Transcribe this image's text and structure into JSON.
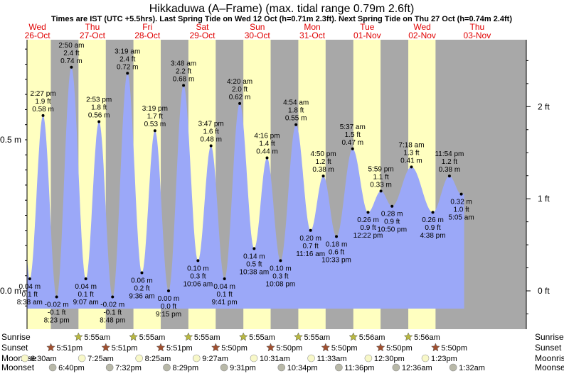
{
  "chart_data": {
    "type": "area",
    "title": "Hikkaduwa (A–Frame) (max. tidal range 0.79m 2.6ft)",
    "subtitle": "Times are IST (UTC +5.5hrs). Last Spring Tide on Wed 12 Oct (h=0.71m 2.3ft). Next Spring Tide on Thu 27 Oct (h=0.74m 2.4ft)",
    "days": [
      {
        "dow": "Wed",
        "date": "26-Oct"
      },
      {
        "dow": "Thu",
        "date": "27-Oct"
      },
      {
        "dow": "Fri",
        "date": "28-Oct"
      },
      {
        "dow": "Sat",
        "date": "29-Oct"
      },
      {
        "dow": "Sun",
        "date": "30-Oct"
      },
      {
        "dow": "Mon",
        "date": "31-Oct"
      },
      {
        "dow": "Tue",
        "date": "01-Nov"
      },
      {
        "dow": "Wed",
        "date": "02-Nov"
      },
      {
        "dow": "Thu",
        "date": "03-Nov"
      }
    ],
    "y_left_ticks": [
      {
        "value": 0,
        "label": "0.0 m"
      },
      {
        "value": 0.5,
        "label": "0.5 m"
      }
    ],
    "y_right_ticks": [
      {
        "value": 0,
        "label": "0 ft"
      },
      {
        "value": 1,
        "label": "1 ft"
      },
      {
        "value": 2,
        "label": "2 ft"
      }
    ],
    "ylim": [
      -0.085,
      0.93
    ],
    "series": [
      {
        "values": [
          {
            "t": "2022-10-26T08:38",
            "h": 0.04,
            "type": "low",
            "lines": [
              "0.04 m",
              "0.1 ft",
              "8:38 am"
            ]
          },
          {
            "t": "2022-10-26T14:27",
            "h": 0.58,
            "type": "high",
            "lines": [
              "2:27 pm",
              "1.9 ft",
              "0.58 m"
            ]
          },
          {
            "t": "2022-10-26T20:23",
            "h": -0.02,
            "type": "low",
            "lines": [
              "-0.02 m",
              "-0.1 ft",
              "8:23 pm"
            ]
          },
          {
            "t": "2022-10-27T02:50",
            "h": 0.74,
            "type": "high",
            "lines": [
              "2:50 am",
              "2.4 ft",
              "0.74 m"
            ]
          },
          {
            "t": "2022-10-27T09:07",
            "h": 0.04,
            "type": "low",
            "lines": [
              "0.04 m",
              "0.1 ft",
              "9:07 am"
            ]
          },
          {
            "t": "2022-10-27T14:53",
            "h": 0.56,
            "type": "high",
            "lines": [
              "2:53 pm",
              "1.8 ft",
              "0.56 m"
            ]
          },
          {
            "t": "2022-10-27T20:48",
            "h": -0.02,
            "type": "low",
            "lines": [
              "-0.02 m",
              "-0.1 ft",
              "8:48 pm"
            ]
          },
          {
            "t": "2022-10-28T03:19",
            "h": 0.72,
            "type": "high",
            "lines": [
              "3:19 am",
              "2.4 ft",
              "0.72 m"
            ]
          },
          {
            "t": "2022-10-28T09:36",
            "h": 0.06,
            "type": "low",
            "lines": [
              "0.06 m",
              "0.2 ft",
              "9:36 am"
            ]
          },
          {
            "t": "2022-10-28T15:19",
            "h": 0.53,
            "type": "high",
            "lines": [
              "3:19 pm",
              "1.7 ft",
              "0.53 m"
            ]
          },
          {
            "t": "2022-10-28T21:15",
            "h": 0.0,
            "type": "low",
            "lines": [
              "0.00 m",
              "0.0 ft",
              "9:15 pm"
            ]
          },
          {
            "t": "2022-10-29T03:48",
            "h": 0.68,
            "type": "high",
            "lines": [
              "3:48 am",
              "2.2 ft",
              "0.68 m"
            ]
          },
          {
            "t": "2022-10-29T10:06",
            "h": 0.1,
            "type": "low",
            "lines": [
              "0.10 m",
              "0.3 ft",
              "10:06 am"
            ]
          },
          {
            "t": "2022-10-29T15:47",
            "h": 0.48,
            "type": "high",
            "lines": [
              "3:47 pm",
              "1.6 ft",
              "0.48 m"
            ]
          },
          {
            "t": "2022-10-29T21:41",
            "h": 0.04,
            "type": "low",
            "lines": [
              "0.04 m",
              "0.1 ft",
              "9:41 pm"
            ]
          },
          {
            "t": "2022-10-30T04:20",
            "h": 0.62,
            "type": "high",
            "lines": [
              "4:20 am",
              "2.0 ft",
              "0.62 m"
            ]
          },
          {
            "t": "2022-10-30T10:38",
            "h": 0.14,
            "type": "low",
            "lines": [
              "0.14 m",
              "0.5 ft",
              "10:38 am"
            ]
          },
          {
            "t": "2022-10-30T16:16",
            "h": 0.44,
            "type": "high",
            "lines": [
              "4:16 pm",
              "1.4 ft",
              "0.44 m"
            ]
          },
          {
            "t": "2022-10-30T22:08",
            "h": 0.1,
            "type": "low",
            "lines": [
              "0.10 m",
              "0.3 ft",
              "10:08 pm"
            ]
          },
          {
            "t": "2022-10-31T04:54",
            "h": 0.55,
            "type": "high",
            "lines": [
              "4:54 am",
              "1.8 ft",
              "0.55 m"
            ]
          },
          {
            "t": "2022-10-31T11:16",
            "h": 0.2,
            "type": "low",
            "lines": [
              "0.20 m",
              "0.7 ft",
              "11:16 am"
            ]
          },
          {
            "t": "2022-10-31T16:50",
            "h": 0.38,
            "type": "high",
            "lines": [
              "4:50 pm",
              "1.2 ft",
              "0.38 m"
            ]
          },
          {
            "t": "2022-10-31T22:33",
            "h": 0.18,
            "type": "low",
            "lines": [
              "0.18 m",
              "0.6 ft",
              "10:33 pm"
            ]
          },
          {
            "t": "2022-11-01T05:37",
            "h": 0.47,
            "type": "high",
            "lines": [
              "5:37 am",
              "1.5 ft",
              "0.47 m"
            ]
          },
          {
            "t": "2022-11-01T12:22",
            "h": 0.26,
            "type": "low",
            "lines": [
              "0.26 m",
              "0.9 ft",
              "12:22 pm"
            ]
          },
          {
            "t": "2022-11-01T17:59",
            "h": 0.33,
            "type": "high",
            "lines": [
              "5:59 pm",
              "1.1 ft",
              "0.33 m"
            ]
          },
          {
            "t": "2022-11-01T22:50",
            "h": 0.28,
            "type": "low",
            "lines": [
              "0.28 m",
              "0.9 ft",
              "10:50 pm"
            ]
          },
          {
            "t": "2022-11-02T07:18",
            "h": 0.41,
            "type": "high",
            "lines": [
              "7:18 am",
              "1.3 ft",
              "0.41 m"
            ]
          },
          {
            "t": "2022-11-02T16:38",
            "h": 0.26,
            "type": "low",
            "lines": [
              "0.26 m",
              "0.9 ft",
              "4:38 pm"
            ]
          },
          {
            "t": "2022-11-02T23:54",
            "h": 0.38,
            "type": "high",
            "lines": [
              "11:54 pm",
              "1.2 ft",
              "0.38 m"
            ]
          },
          {
            "t": "2022-11-03T05:05",
            "h": 0.32,
            "type": "low",
            "lines": [
              "0.32 m",
              "1.0 ft",
              "5:05 am"
            ]
          }
        ]
      }
    ],
    "rows": {
      "labels": [
        "Sunrise",
        "Sunset",
        "Moonrise",
        "Moonset"
      ],
      "sunrise": [
        {
          "t": "2022-10-27T05:55",
          "text": "5:55am"
        },
        {
          "t": "2022-10-28T05:55",
          "text": "5:55am"
        },
        {
          "t": "2022-10-29T05:55",
          "text": "5:55am"
        },
        {
          "t": "2022-10-30T05:55",
          "text": "5:55am"
        },
        {
          "t": "2022-10-31T05:55",
          "text": "5:55am"
        },
        {
          "t": "2022-11-01T05:56",
          "text": "5:56am"
        },
        {
          "t": "2022-11-02T05:56",
          "text": "5:56am"
        }
      ],
      "sunset": [
        {
          "t": "2022-10-26T17:51",
          "text": "5:51pm"
        },
        {
          "t": "2022-10-27T17:51",
          "text": "5:51pm"
        },
        {
          "t": "2022-10-28T17:51",
          "text": "5:51pm"
        },
        {
          "t": "2022-10-29T17:50",
          "text": "5:50pm"
        },
        {
          "t": "2022-10-30T17:50",
          "text": "5:50pm"
        },
        {
          "t": "2022-10-31T17:50",
          "text": "5:50pm"
        },
        {
          "t": "2022-11-01T17:50",
          "text": "5:50pm"
        },
        {
          "t": "2022-11-02T17:50",
          "text": "5:50pm"
        }
      ],
      "moonrise": [
        {
          "t": "2022-10-26T06:30",
          "text": "6:30am"
        },
        {
          "t": "2022-10-27T07:25",
          "text": "7:25am"
        },
        {
          "t": "2022-10-28T08:25",
          "text": "8:25am"
        },
        {
          "t": "2022-10-29T09:27",
          "text": "9:27am"
        },
        {
          "t": "2022-10-30T10:31",
          "text": "10:31am"
        },
        {
          "t": "2022-10-31T11:33",
          "text": "11:33am"
        },
        {
          "t": "2022-11-01T12:30",
          "text": "12:30pm"
        },
        {
          "t": "2022-11-02T13:23",
          "text": "1:23pm"
        }
      ],
      "moonset": [
        {
          "t": "2022-10-26T18:40",
          "text": "6:40pm"
        },
        {
          "t": "2022-10-27T19:32",
          "text": "7:32pm"
        },
        {
          "t": "2022-10-28T20:29",
          "text": "8:29pm"
        },
        {
          "t": "2022-10-29T21:31",
          "text": "9:31pm"
        },
        {
          "t": "2022-10-30T22:34",
          "text": "10:34pm"
        },
        {
          "t": "2022-10-31T23:36",
          "text": "11:36pm"
        },
        {
          "t": "2022-11-02T00:36",
          "text": "12:36am"
        },
        {
          "t": "2022-11-03T01:32",
          "text": "1:32am"
        }
      ]
    },
    "colors": {
      "day": "#ffffc0",
      "night": "#a8a8a8",
      "water": "#9ba8f8",
      "date_text": "#e00000",
      "sunrise_star": "#b8b840",
      "sunset_star": "#a05030",
      "moonrise": "#f8f8c8",
      "moonset": "#b8b8a8"
    }
  }
}
